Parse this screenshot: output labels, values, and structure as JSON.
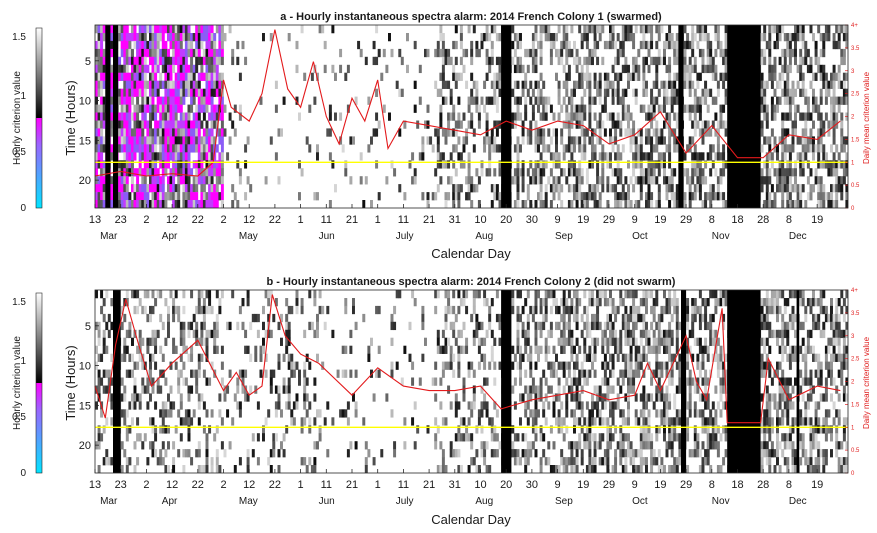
{
  "colorbar": {
    "label": "Hourly criterion value",
    "ticks": [
      "1.5",
      "1",
      "0.5",
      "0"
    ],
    "tick_values": [
      1.5,
      1,
      0.5,
      0
    ],
    "range": [
      0,
      1.6
    ],
    "colors": {
      "cyan": "#00e5ff",
      "magenta": "#ff00ff",
      "black": "#000000",
      "white": "#ffffff"
    }
  },
  "colors": {
    "line": "#e31a1c",
    "threshold": "#ffff00",
    "frame": "#262626"
  },
  "chart_data": [
    {
      "type": "heatmap",
      "title": "a - Hourly instantaneous spectra alarm: 2014 French Colony 1 (swarmed)",
      "xlabel": "Calendar Day",
      "ylabel": "Time (Hours)",
      "right_ylabel": "Daily mean criterion value",
      "day_ticks": [
        "13",
        "23",
        "2",
        "12",
        "22",
        "2",
        "12",
        "22",
        "1",
        "11",
        "21",
        "1",
        "11",
        "21",
        "31",
        "10",
        "20",
        "30",
        "9",
        "19",
        "29",
        "9",
        "19",
        "29",
        "8",
        "18",
        "28",
        "8",
        "19"
      ],
      "day_tick_dates": [
        "2014-03-13",
        "2014-03-23",
        "2014-04-02",
        "2014-04-12",
        "2014-04-22",
        "2014-05-02",
        "2014-05-12",
        "2014-05-22",
        "2014-06-01",
        "2014-06-11",
        "2014-06-21",
        "2014-07-01",
        "2014-07-11",
        "2014-07-21",
        "2014-07-31",
        "2014-08-10",
        "2014-08-20",
        "2014-08-30",
        "2014-09-09",
        "2014-09-19",
        "2014-09-29",
        "2014-10-09",
        "2014-10-19",
        "2014-10-29",
        "2014-11-08",
        "2014-11-18",
        "2014-11-28",
        "2014-12-08",
        "2014-12-19"
      ],
      "months": [
        "Mar",
        "Apr",
        "May",
        "Jun",
        "July",
        "Aug",
        "Sep",
        "Oct",
        "Nov",
        "Dec"
      ],
      "month_dates": [
        "2014-03-15",
        "2014-04-08",
        "2014-05-08",
        "2014-06-08",
        "2014-07-08",
        "2014-08-08",
        "2014-09-08",
        "2014-10-08",
        "2014-11-08",
        "2014-12-08"
      ],
      "xlim": [
        "2014-03-13",
        "2014-12-31"
      ],
      "ylim": [
        1,
        23
      ],
      "yticks": [
        "5",
        "10",
        "15",
        "20"
      ],
      "ytick_values": [
        5,
        10,
        15,
        20
      ],
      "right_ylim": [
        0,
        4
      ],
      "right_yticks": [
        "0",
        "0.5",
        "1",
        "1.5",
        "2",
        "2.5",
        "3",
        "3.5",
        "4+"
      ],
      "threshold": 1.0,
      "dark_bands": [
        {
          "start": "2014-03-17",
          "end": "2014-03-19"
        },
        {
          "start": "2014-03-20",
          "end": "2014-03-22"
        },
        {
          "start": "2014-08-18",
          "end": "2014-08-22"
        },
        {
          "start": "2014-10-26",
          "end": "2014-10-28"
        },
        {
          "start": "2014-11-14",
          "end": "2014-11-27"
        }
      ],
      "daily_mean": {
        "dates": [
          "2014-03-13",
          "2014-03-23",
          "2014-04-02",
          "2014-04-12",
          "2014-04-22",
          "2014-04-28",
          "2014-05-02",
          "2014-05-05",
          "2014-05-12",
          "2014-05-17",
          "2014-05-22",
          "2014-05-27",
          "2014-06-01",
          "2014-06-06",
          "2014-06-11",
          "2014-06-16",
          "2014-06-21",
          "2014-06-26",
          "2014-07-01",
          "2014-07-05",
          "2014-07-11",
          "2014-07-21",
          "2014-07-31",
          "2014-08-10",
          "2014-08-20",
          "2014-08-30",
          "2014-09-09",
          "2014-09-19",
          "2014-09-29",
          "2014-10-09",
          "2014-10-19",
          "2014-10-29",
          "2014-11-08",
          "2014-11-18",
          "2014-11-28",
          "2014-12-08",
          "2014-12-19",
          "2014-12-28"
        ],
        "values": [
          0.7,
          0.8,
          0.7,
          0.75,
          0.7,
          1.0,
          2.8,
          2.2,
          1.9,
          2.5,
          3.9,
          2.6,
          2.2,
          3.2,
          2.0,
          1.4,
          2.4,
          1.9,
          2.8,
          1.3,
          1.9,
          1.8,
          1.7,
          1.6,
          1.9,
          1.7,
          1.9,
          1.8,
          1.4,
          1.6,
          2.1,
          1.2,
          1.8,
          1.1,
          1.1,
          1.6,
          1.5,
          1.9
        ]
      }
    },
    {
      "type": "heatmap",
      "title": "b - Hourly instantaneous spectra alarm: 2014 French Colony 2 (did not swarm)",
      "xlabel": "Calendar Day",
      "ylabel": "Time (Hours)",
      "right_ylabel": "Daily mean criterion value",
      "day_ticks": [
        "13",
        "23",
        "2",
        "12",
        "22",
        "2",
        "12",
        "22",
        "1",
        "11",
        "21",
        "1",
        "11",
        "21",
        "31",
        "10",
        "20",
        "30",
        "9",
        "19",
        "29",
        "9",
        "19",
        "29",
        "8",
        "18",
        "28",
        "8",
        "19"
      ],
      "day_tick_dates": [
        "2014-03-13",
        "2014-03-23",
        "2014-04-02",
        "2014-04-12",
        "2014-04-22",
        "2014-05-02",
        "2014-05-12",
        "2014-05-22",
        "2014-06-01",
        "2014-06-11",
        "2014-06-21",
        "2014-07-01",
        "2014-07-11",
        "2014-07-21",
        "2014-07-31",
        "2014-08-10",
        "2014-08-20",
        "2014-08-30",
        "2014-09-09",
        "2014-09-19",
        "2014-09-29",
        "2014-10-09",
        "2014-10-19",
        "2014-10-29",
        "2014-11-08",
        "2014-11-18",
        "2014-11-28",
        "2014-12-08",
        "2014-12-19"
      ],
      "months": [
        "Mar",
        "Apr",
        "May",
        "Jun",
        "July",
        "Aug",
        "Sep",
        "Oct",
        "Nov",
        "Dec"
      ],
      "month_dates": [
        "2014-03-15",
        "2014-04-08",
        "2014-05-08",
        "2014-06-08",
        "2014-07-08",
        "2014-08-08",
        "2014-09-08",
        "2014-10-08",
        "2014-11-08",
        "2014-12-08"
      ],
      "xlim": [
        "2014-03-13",
        "2014-12-31"
      ],
      "ylim": [
        1,
        23
      ],
      "yticks": [
        "5",
        "10",
        "15",
        "20"
      ],
      "ytick_values": [
        5,
        10,
        15,
        20
      ],
      "right_ylim": [
        0,
        4
      ],
      "right_yticks": [
        "0",
        "0.5",
        "1",
        "1.5",
        "2",
        "2.5",
        "3",
        "3.5",
        "4+"
      ],
      "threshold": 1.0,
      "dark_bands": [
        {
          "start": "2014-03-20",
          "end": "2014-03-23"
        },
        {
          "start": "2014-08-18",
          "end": "2014-08-22"
        },
        {
          "start": "2014-10-27",
          "end": "2014-10-29"
        },
        {
          "start": "2014-11-14",
          "end": "2014-11-27"
        },
        {
          "start": "2014-12-11",
          "end": "2014-12-12"
        }
      ],
      "daily_mean": {
        "dates": [
          "2014-03-13",
          "2014-03-17",
          "2014-03-21",
          "2014-03-25",
          "2014-03-30",
          "2014-04-04",
          "2014-04-12",
          "2014-04-22",
          "2014-05-02",
          "2014-05-07",
          "2014-05-12",
          "2014-05-17",
          "2014-05-21",
          "2014-05-26",
          "2014-06-01",
          "2014-06-08",
          "2014-06-21",
          "2014-07-01",
          "2014-07-11",
          "2014-07-21",
          "2014-07-31",
          "2014-08-10",
          "2014-08-18",
          "2014-08-30",
          "2014-09-09",
          "2014-09-19",
          "2014-09-29",
          "2014-10-09",
          "2014-10-14",
          "2014-10-19",
          "2014-10-29",
          "2014-11-02",
          "2014-11-06",
          "2014-11-12",
          "2014-11-14",
          "2014-11-27",
          "2014-11-30",
          "2014-12-08",
          "2014-12-19",
          "2014-12-28"
        ],
        "values": [
          1.9,
          1.2,
          2.8,
          3.8,
          2.8,
          1.9,
          2.4,
          2.9,
          1.8,
          2.2,
          1.7,
          1.9,
          3.9,
          3.0,
          2.6,
          2.4,
          1.7,
          2.3,
          1.9,
          1.8,
          1.8,
          1.9,
          1.4,
          1.6,
          1.7,
          1.8,
          1.6,
          1.7,
          2.4,
          1.8,
          3.0,
          2.0,
          1.6,
          3.6,
          1.1,
          1.1,
          2.5,
          1.6,
          1.9,
          1.8
        ]
      }
    }
  ]
}
